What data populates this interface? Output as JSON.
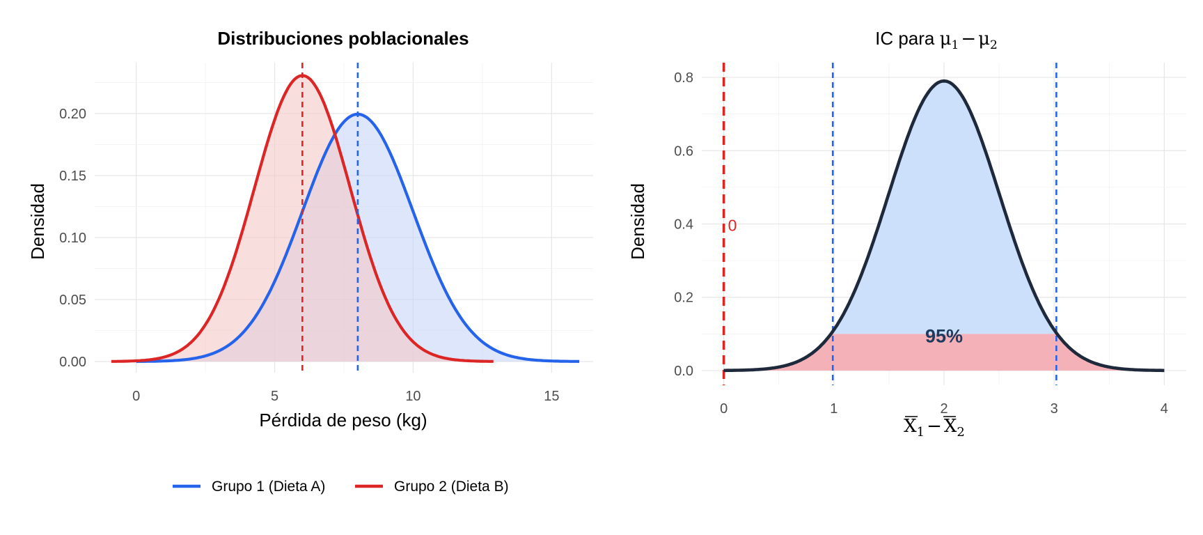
{
  "chart_data": [
    {
      "type": "area",
      "title": "Distribuciones poblacionales",
      "xlabel": "Pérdida de peso (kg)",
      "ylabel": "Densidad",
      "xlim": [
        -1.5,
        16.5
      ],
      "ylim": [
        -0.009,
        0.241
      ],
      "x_ticks": [
        0,
        5,
        10,
        15
      ],
      "x_tick_labels": [
        "0",
        "5",
        "10",
        "15"
      ],
      "y_ticks": [
        0,
        0.05,
        0.1,
        0.15,
        0.2
      ],
      "y_tick_labels": [
        "0.00",
        "0.05",
        "0.10",
        "0.15",
        "0.20"
      ],
      "grid": true,
      "legend_position": "bottom",
      "series": [
        {
          "name": "Grupo 1 (Dieta A)",
          "distribution": "normal",
          "mean": 8,
          "sd": 2,
          "x_range": [
            0,
            16
          ],
          "color": "#2563EB",
          "fill": "#C7D5F8"
        },
        {
          "name": "Grupo 2 (Dieta B)",
          "distribution": "normal",
          "mean": 6,
          "sd": 1.73,
          "x_range": [
            -0.9,
            12.9
          ],
          "color": "#DC2626",
          "fill": "#F5C8C8"
        }
      ],
      "reference_lines": [
        {
          "x": 8,
          "color": "#2563EB",
          "style": "dashed"
        },
        {
          "x": 6,
          "color": "#DC2626",
          "style": "dashed"
        }
      ]
    },
    {
      "type": "area",
      "title_prefix": "IC para ",
      "title_math": {
        "a": "μ",
        "a_sub": "1",
        "op": "−",
        "b": "μ",
        "b_sub": "2"
      },
      "xlabel_math": {
        "a": "X",
        "a_sub": "1",
        "op": "−",
        "b": "X",
        "b_sub": "2"
      },
      "ylabel": "Densidad",
      "xlim": [
        -0.2,
        4.2
      ],
      "ylim": [
        -0.04,
        0.84
      ],
      "x_ticks": [
        0,
        1,
        2,
        3,
        4
      ],
      "x_tick_labels": [
        "0",
        "1",
        "2",
        "3",
        "4"
      ],
      "y_ticks": [
        0,
        0.2,
        0.4,
        0.6,
        0.8
      ],
      "y_tick_labels": [
        "0.0",
        "0.2",
        "0.4",
        "0.6",
        "0.8"
      ],
      "grid": true,
      "curve": {
        "distribution": "normal",
        "mean": 2,
        "sd": 0.505,
        "x_range": [
          0,
          4
        ],
        "color": "#1E293B"
      },
      "ci": {
        "lower": 0.99,
        "upper": 3.02,
        "level_label": "95%",
        "fill": "#CCE0FC"
      },
      "tail_fill": "#F4B1B7",
      "base_band_height": 0.1,
      "reference_lines": [
        {
          "x": 0,
          "color": "#DC2626",
          "style": "dashed",
          "label": "0"
        },
        {
          "x": 0.99,
          "color": "#2563EB",
          "style": "dashed"
        },
        {
          "x": 3.02,
          "color": "#2563EB",
          "style": "dashed"
        }
      ],
      "label_color_pct": "#1E3A5F",
      "label_color_zero": "#DC2626"
    }
  ]
}
